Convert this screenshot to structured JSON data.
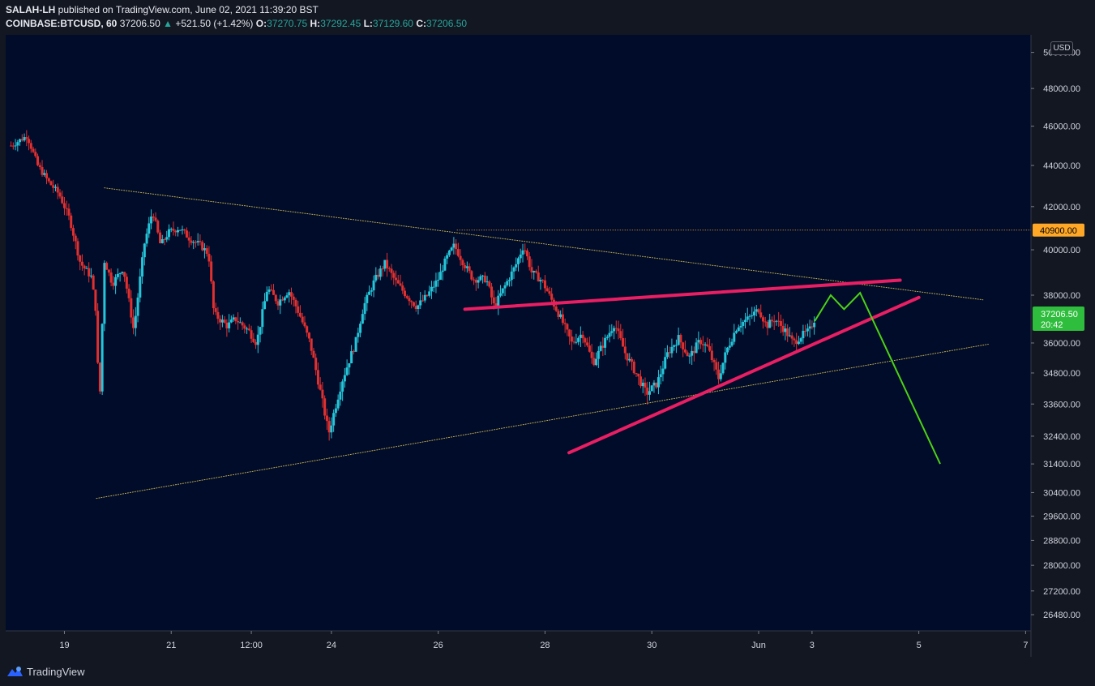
{
  "header": {
    "author": "SALAH-LH",
    "published_text": "published on TradingView.com, June 02, 2021 11:39:20 BST",
    "symbol": "COINBASE:BTCUSD, 60",
    "last": "37206.50",
    "change_arrow": "▲",
    "change": "+521.50 (+1.42%)",
    "o_label": "O:",
    "o_value": "37270.75",
    "h_label": "H:",
    "h_value": "37292.45",
    "l_label": "L:",
    "l_value": "37129.60",
    "c_label": "C:",
    "c_value": "37206.50"
  },
  "footer": {
    "brand": "TradingView"
  },
  "colors": {
    "background": "#131722",
    "plot_bg": "#010c2a",
    "up": "#26c6da",
    "down": "#e03030",
    "trend_pink": "#e91e63",
    "projection_green": "#4cd216",
    "level_orange": "#ffa726",
    "last_price_green": "#2ebd3c"
  },
  "chart_data": {
    "type": "candlestick",
    "symbol": "COINBASE:BTCUSD",
    "interval": "60",
    "price_scale_label": "USD",
    "ylim": [
      26000,
      51000
    ],
    "y_ticks": [
      {
        "price": 50000,
        "label": "50000.00"
      },
      {
        "price": 48000,
        "label": "48000.00"
      },
      {
        "price": 46000,
        "label": "46000.00"
      },
      {
        "price": 44000,
        "label": "44000.00"
      },
      {
        "price": 42000,
        "label": "42000.00"
      },
      {
        "price": 40000,
        "label": "40000.00"
      },
      {
        "price": 38000,
        "label": "38000.00"
      },
      {
        "price": 36000,
        "label": "36000.00"
      },
      {
        "price": 34800,
        "label": "34800.00"
      },
      {
        "price": 33600,
        "label": "33600.00"
      },
      {
        "price": 32400,
        "label": "32400.00"
      },
      {
        "price": 31400,
        "label": "31400.00"
      },
      {
        "price": 30400,
        "label": "30400.00"
      },
      {
        "price": 29600,
        "label": "29600.00"
      },
      {
        "price": 28800,
        "label": "28800.00"
      },
      {
        "price": 28000,
        "label": "28000.00"
      },
      {
        "price": 27200,
        "label": "27200.00"
      },
      {
        "price": 26480,
        "label": "26480.00"
      }
    ],
    "x_ticks": [
      {
        "t": 19.0,
        "label": "19"
      },
      {
        "t": 21.0,
        "label": "21"
      },
      {
        "t": 22.5,
        "label": "12:00"
      },
      {
        "t": 24.0,
        "label": "24"
      },
      {
        "t": 26.0,
        "label": "26"
      },
      {
        "t": 28.0,
        "label": "28"
      },
      {
        "t": 30.0,
        "label": "30"
      },
      {
        "t": 32.0,
        "label": "Jun"
      },
      {
        "t": 33.0,
        "label": "3"
      },
      {
        "t": 35.0,
        "label": "5"
      },
      {
        "t": 37.0,
        "label": "7"
      }
    ],
    "price_path": [
      [
        18.0,
        45000
      ],
      [
        18.3,
        45500
      ],
      [
        18.5,
        44000
      ],
      [
        18.7,
        43200
      ],
      [
        18.9,
        42600
      ],
      [
        19.1,
        41400
      ],
      [
        19.3,
        39400
      ],
      [
        19.5,
        38800
      ],
      [
        19.6,
        37200
      ],
      [
        19.65,
        33000
      ],
      [
        19.75,
        39500
      ],
      [
        19.9,
        38500
      ],
      [
        20.1,
        39200
      ],
      [
        20.3,
        36500
      ],
      [
        20.5,
        40300
      ],
      [
        20.65,
        41800
      ],
      [
        20.8,
        40200
      ],
      [
        20.95,
        40800
      ],
      [
        21.15,
        41000
      ],
      [
        21.35,
        40500
      ],
      [
        21.55,
        40200
      ],
      [
        21.7,
        39800
      ],
      [
        21.8,
        37200
      ],
      [
        22.05,
        36700
      ],
      [
        22.2,
        37000
      ],
      [
        22.45,
        36500
      ],
      [
        22.6,
        36000
      ],
      [
        22.8,
        38300
      ],
      [
        23.0,
        37700
      ],
      [
        23.2,
        38200
      ],
      [
        23.4,
        37200
      ],
      [
        23.6,
        36000
      ],
      [
        23.8,
        34000
      ],
      [
        23.95,
        32500
      ],
      [
        24.2,
        34500
      ],
      [
        24.45,
        36000
      ],
      [
        24.6,
        37500
      ],
      [
        24.8,
        38600
      ],
      [
        25.0,
        39400
      ],
      [
        25.2,
        38600
      ],
      [
        25.4,
        38000
      ],
      [
        25.6,
        37500
      ],
      [
        25.8,
        38000
      ],
      [
        26.0,
        38700
      ],
      [
        26.15,
        39600
      ],
      [
        26.3,
        40200
      ],
      [
        26.45,
        39500
      ],
      [
        26.65,
        38700
      ],
      [
        26.9,
        38700
      ],
      [
        27.05,
        37500
      ],
      [
        27.25,
        38400
      ],
      [
        27.45,
        39300
      ],
      [
        27.6,
        40200
      ],
      [
        27.75,
        39000
      ],
      [
        27.95,
        38600
      ],
      [
        28.1,
        37900
      ],
      [
        28.3,
        37000
      ],
      [
        28.5,
        36000
      ],
      [
        28.7,
        36400
      ],
      [
        28.9,
        35200
      ],
      [
        29.15,
        36200
      ],
      [
        29.3,
        36800
      ],
      [
        29.5,
        35600
      ],
      [
        29.7,
        34800
      ],
      [
        29.9,
        34000
      ],
      [
        30.1,
        34400
      ],
      [
        30.3,
        35600
      ],
      [
        30.5,
        36200
      ],
      [
        30.7,
        35400
      ],
      [
        30.9,
        36100
      ],
      [
        31.05,
        35800
      ],
      [
        31.25,
        34600
      ],
      [
        31.4,
        35700
      ],
      [
        31.6,
        36700
      ],
      [
        31.8,
        37000
      ],
      [
        32.0,
        37400
      ],
      [
        32.15,
        36700
      ],
      [
        32.3,
        37000
      ],
      [
        32.5,
        36500
      ],
      [
        32.65,
        36000
      ],
      [
        32.8,
        36300
      ],
      [
        32.95,
        36500
      ],
      [
        33.05,
        37000
      ]
    ],
    "horizontal_line": {
      "price": 40900,
      "label": "40900.00"
    },
    "last_price": {
      "price": 37206.5,
      "label": "37206.50",
      "countdown": "20:42"
    },
    "triangle_upper": {
      "from": [
        19.75,
        42900
      ],
      "to": [
        36.2,
        37800
      ]
    },
    "triangle_lower": {
      "from": [
        19.6,
        30200
      ],
      "to": [
        36.3,
        35950
      ]
    },
    "wedge_upper": {
      "from": [
        26.5,
        37400
      ],
      "to": [
        34.65,
        38650
      ]
    },
    "wedge_lower": {
      "from": [
        28.45,
        31800
      ],
      "to": [
        35.0,
        37900
      ]
    },
    "projection": [
      [
        33.05,
        36900
      ],
      [
        33.35,
        38000
      ],
      [
        33.6,
        37400
      ],
      [
        33.9,
        38100
      ],
      [
        35.4,
        31400
      ]
    ]
  }
}
